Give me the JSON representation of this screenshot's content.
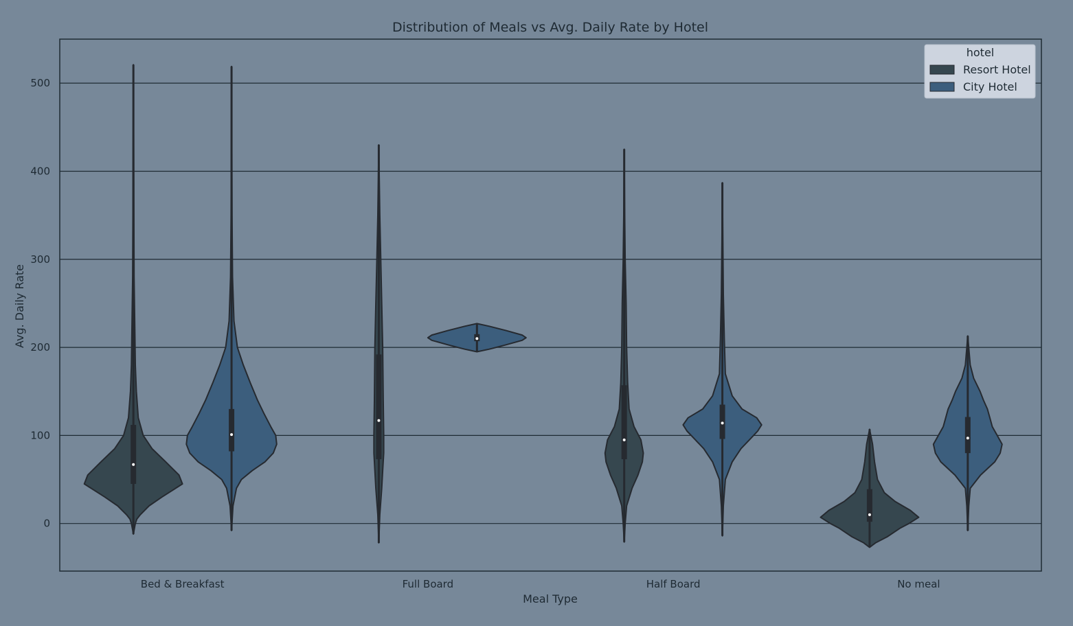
{
  "chart_data": {
    "type": "violin",
    "title": "Distribution of Meals vs Avg. Daily Rate by Hotel",
    "xlabel": "Meal Type",
    "ylabel": "Avg. Daily Rate",
    "ylim": [
      -54,
      550
    ],
    "yticks": [
      0,
      100,
      200,
      300,
      400,
      500
    ],
    "grid": "horizontal",
    "categories": [
      "Bed & Breakfast",
      "Full Board",
      "Half Board",
      "No meal"
    ],
    "legend": {
      "title": "hotel",
      "placement": "top-right"
    },
    "colors": {
      "background": "#778899",
      "axes_line": "#1e2a33",
      "grid_line": "#1e2a33",
      "text": "#1e2a33",
      "outline": "#262a30",
      "median": "#ffffff",
      "legend_bg": "#cdd4df"
    },
    "series": [
      {
        "name": "Resort Hotel",
        "color": "#36474f",
        "violins": [
          {
            "category": "Bed & Breakfast",
            "whisker": [
              -12,
              521
            ],
            "q1": 45,
            "median": 67,
            "q3": 112,
            "profile": [
              [
                -12,
                0
              ],
              [
                0,
                0.04
              ],
              [
                5,
                0.07
              ],
              [
                10,
                0.14
              ],
              [
                20,
                0.32
              ],
              [
                30,
                0.58
              ],
              [
                40,
                0.86
              ],
              [
                45,
                1.0
              ],
              [
                55,
                0.93
              ],
              [
                70,
                0.66
              ],
              [
                85,
                0.38
              ],
              [
                100,
                0.2
              ],
              [
                120,
                0.1
              ],
              [
                150,
                0.06
              ],
              [
                180,
                0.04
              ],
              [
                220,
                0.03
              ],
              [
                280,
                0.015
              ],
              [
                350,
                0.01
              ],
              [
                521,
                0
              ]
            ]
          },
          {
            "category": "Full Board",
            "whisker": [
              -22,
              430
            ],
            "q1": 73,
            "median": 117,
            "q3": 192,
            "profile": [
              [
                -22,
                0
              ],
              [
                10,
                0.02
              ],
              [
                40,
                0.06
              ],
              [
                60,
                0.08
              ],
              [
                80,
                0.1
              ],
              [
                100,
                0.1
              ],
              [
                140,
                0.09
              ],
              [
                200,
                0.08
              ],
              [
                250,
                0.06
              ],
              [
                300,
                0.04
              ],
              [
                350,
                0.02
              ],
              [
                430,
                0
              ]
            ]
          },
          {
            "category": "Half Board",
            "whisker": [
              -21,
              425
            ],
            "q1": 73,
            "median": 95,
            "q3": 157,
            "profile": [
              [
                -21,
                0
              ],
              [
                0,
                0.02
              ],
              [
                20,
                0.05
              ],
              [
                40,
                0.16
              ],
              [
                55,
                0.28
              ],
              [
                70,
                0.37
              ],
              [
                80,
                0.39
              ],
              [
                95,
                0.34
              ],
              [
                110,
                0.2
              ],
              [
                130,
                0.1
              ],
              [
                160,
                0.07
              ],
              [
                200,
                0.05
              ],
              [
                250,
                0.04
              ],
              [
                300,
                0.02
              ],
              [
                350,
                0.01
              ],
              [
                425,
                0
              ]
            ]
          },
          {
            "category": "No meal",
            "whisker": [
              -27,
              107
            ],
            "q1": 2,
            "median": 10,
            "q3": 39,
            "profile": [
              [
                -27,
                0
              ],
              [
                -22,
                0.12
              ],
              [
                -15,
                0.36
              ],
              [
                -5,
                0.63
              ],
              [
                0,
                0.8
              ],
              [
                7,
                1.0
              ],
              [
                15,
                0.83
              ],
              [
                25,
                0.52
              ],
              [
                35,
                0.3
              ],
              [
                50,
                0.16
              ],
              [
                70,
                0.1
              ],
              [
                90,
                0.06
              ],
              [
                107,
                0
              ]
            ]
          }
        ]
      },
      {
        "name": "City Hotel",
        "color": "#3c5e7d",
        "violins": [
          {
            "category": "Bed & Breakfast",
            "whisker": [
              -8,
              519
            ],
            "q1": 82,
            "median": 101,
            "q3": 130,
            "profile": [
              [
                -8,
                0
              ],
              [
                20,
                0.03
              ],
              [
                40,
                0.1
              ],
              [
                50,
                0.2
              ],
              [
                60,
                0.42
              ],
              [
                70,
                0.68
              ],
              [
                80,
                0.85
              ],
              [
                90,
                0.92
              ],
              [
                100,
                0.9
              ],
              [
                110,
                0.8
              ],
              [
                125,
                0.66
              ],
              [
                140,
                0.53
              ],
              [
                160,
                0.38
              ],
              [
                180,
                0.24
              ],
              [
                200,
                0.12
              ],
              [
                230,
                0.05
              ],
              [
                280,
                0.02
              ],
              [
                350,
                0.01
              ],
              [
                519,
                0
              ]
            ]
          },
          {
            "category": "Full Board",
            "whisker": [
              195,
              227
            ],
            "q1": 207,
            "median": 210,
            "q3": 215,
            "profile": [
              [
                195,
                0
              ],
              [
                198,
                0.25
              ],
              [
                203,
                0.6
              ],
              [
                208,
                0.92
              ],
              [
                211,
                1.0
              ],
              [
                214,
                0.92
              ],
              [
                219,
                0.6
              ],
              [
                224,
                0.25
              ],
              [
                227,
                0
              ]
            ]
          },
          {
            "category": "Half Board",
            "whisker": [
              -14,
              387
            ],
            "q1": 96,
            "median": 114,
            "q3": 135,
            "profile": [
              [
                -14,
                0
              ],
              [
                20,
                0.02
              ],
              [
                50,
                0.06
              ],
              [
                70,
                0.2
              ],
              [
                85,
                0.38
              ],
              [
                95,
                0.55
              ],
              [
                105,
                0.72
              ],
              [
                112,
                0.8
              ],
              [
                120,
                0.7
              ],
              [
                130,
                0.4
              ],
              [
                145,
                0.2
              ],
              [
                170,
                0.06
              ],
              [
                210,
                0.04
              ],
              [
                260,
                0.02
              ],
              [
                320,
                0.01
              ],
              [
                387,
                0
              ]
            ]
          },
          {
            "category": "No meal",
            "whisker": [
              -8,
              213
            ],
            "q1": 80,
            "median": 97,
            "q3": 121,
            "profile": [
              [
                -8,
                0
              ],
              [
                20,
                0.02
              ],
              [
                40,
                0.05
              ],
              [
                55,
                0.26
              ],
              [
                70,
                0.55
              ],
              [
                80,
                0.66
              ],
              [
                90,
                0.7
              ],
              [
                100,
                0.6
              ],
              [
                110,
                0.5
              ],
              [
                120,
                0.45
              ],
              [
                130,
                0.4
              ],
              [
                140,
                0.32
              ],
              [
                150,
                0.25
              ],
              [
                165,
                0.12
              ],
              [
                180,
                0.05
              ],
              [
                213,
                0
              ]
            ]
          }
        ]
      }
    ]
  }
}
